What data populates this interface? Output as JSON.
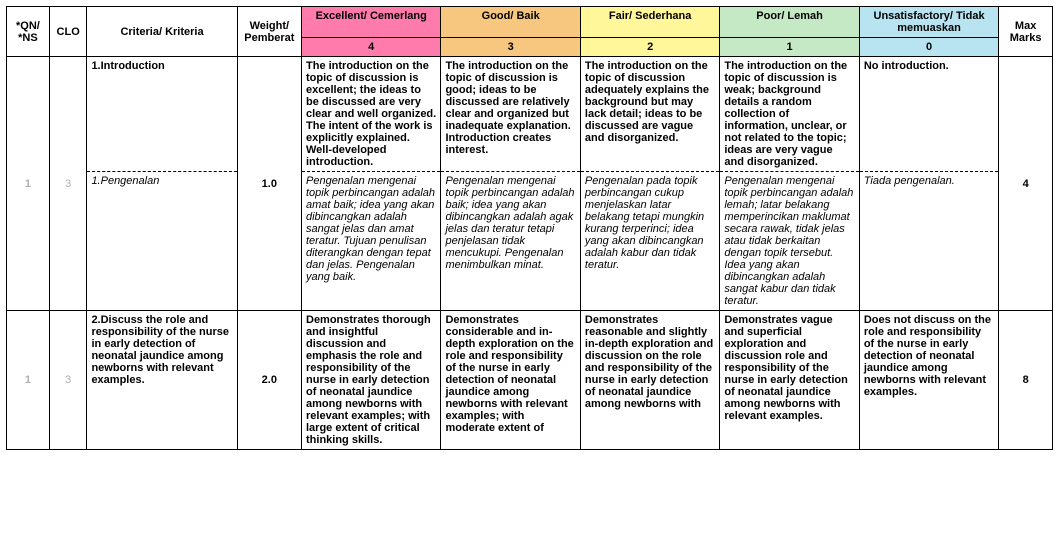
{
  "colors": {
    "excellent": "#ff7bac",
    "good": "#f7c67f",
    "fair": "#fff799",
    "poor": "#c5e8c5",
    "unsatisfactory": "#b7e4f0",
    "grid": "#000000",
    "text": "#000000",
    "grey_text": "#b0b0b0",
    "background": "#ffffff"
  },
  "fonts": {
    "body_pt": 11,
    "family": "Arial"
  },
  "header": {
    "qn": "*QN/ *NS",
    "clo": "CLO",
    "criteria": "Criteria/ Kriteria",
    "weight": "Weight/ Pemberat",
    "levels": [
      {
        "label": "Excellent/ Cemerlang",
        "score": "4"
      },
      {
        "label": "Good/ Baik",
        "score": "3"
      },
      {
        "label": "Fair/ Sederhana",
        "score": "2"
      },
      {
        "label": "Poor/ Lemah",
        "score": "1"
      },
      {
        "label": "Unsatisfactory/ Tidak memuaskan",
        "score": "0"
      }
    ],
    "max": "Max Marks"
  },
  "rows": [
    {
      "qn": "1",
      "clo": "3",
      "weight": "1.0",
      "max": "4",
      "criteria_en": "1.Introduction",
      "criteria_my": "1.Pengenalan",
      "en": {
        "excellent": "The introduction on the topic of discussion is excellent; the ideas to be discussed are very clear and well organized. The intent of the work is explicitly explained. Well-developed introduction.",
        "good": "The introduction on the topic of discussion is good; ideas to be discussed are relatively clear and organized but inadequate explanation. Introduction creates interest.",
        "fair": "The introduction on the topic of discussion adequately explains the background but may lack detail; ideas to be discussed are vague and disorganized.",
        "poor": "The introduction on the topic of discussion is weak; background details a random collection of information, unclear, or not related to the topic; ideas are very vague and disorganized.",
        "unsat": "No introduction."
      },
      "my": {
        "excellent": "Pengenalan mengenai topik perbincangan adalah amat baik; idea yang akan dibincangkan adalah sangat jelas dan amat teratur. Tujuan penulisan diterangkan dengan tepat dan jelas. Pengenalan yang baik.",
        "good": "Pengenalan mengenai topik perbincangan adalah baik; idea yang akan dibincangkan adalah agak jelas dan teratur tetapi penjelasan tidak mencukupi. Pengenalan menimbulkan minat.",
        "fair": "Pengenalan pada topik perbincangan cukup menjelaskan latar belakang tetapi mungkin kurang terperinci; idea yang akan dibincangkan adalah kabur dan tidak teratur.",
        "poor": "Pengenalan mengenai topik perbincangan adalah lemah; latar belakang memperincikan maklumat secara rawak, tidak jelas atau tidak berkaitan dengan topik tersebut. Idea yang akan dibincangkan adalah sangat kabur dan tidak teratur.",
        "unsat": "Tiada pengenalan."
      }
    },
    {
      "qn": "1",
      "clo": "3",
      "weight": "2.0",
      "max": "8",
      "criteria_en": "2.Discuss the role and responsibility of the nurse in early detection of neonatal jaundice among newborns with relevant examples.",
      "en": {
        "excellent": "Demonstrates thorough and insightful discussion and emphasis the role and responsibility of the nurse in early detection of neonatal jaundice among newborns with relevant examples; with large extent of critical thinking skills.",
        "good": "Demonstrates considerable and in-depth exploration on the role and responsibility of the nurse in early detection of neonatal jaundice among newborns with relevant examples; with moderate extent of",
        "fair": "Demonstrates reasonable and slightly in-depth exploration and discussion on the role and responsibility of the nurse in early detection of neonatal jaundice among newborns with",
        "poor": "Demonstrates vague and superficial exploration and discussion role and responsibility of the nurse in early detection of neonatal jaundice among newborns with relevant examples.",
        "unsat": "Does not discuss on the role and responsibility of the nurse in early detection of neonatal jaundice among newborns with relevant examples."
      }
    }
  ]
}
